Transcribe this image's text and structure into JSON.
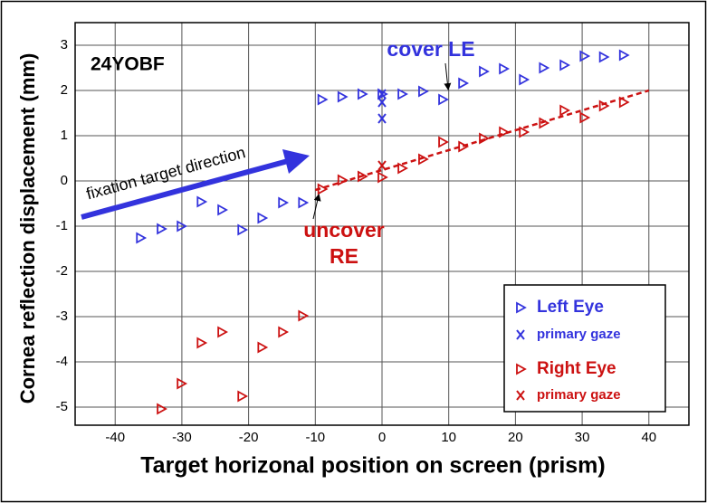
{
  "chart_data": {
    "type": "scatter",
    "label": "24YOBF",
    "xlabel": "Target horizonal position on screen (prism)",
    "ylabel": "Cornea reflection displacement (mm)",
    "xlim": [
      -46,
      46
    ],
    "ylim": [
      -5.4,
      3.5
    ],
    "xticks": [
      -40,
      -30,
      -20,
      -10,
      0,
      10,
      20,
      30,
      40
    ],
    "yticks": [
      -5,
      -4,
      -3,
      -2,
      -1,
      0,
      1,
      2,
      3
    ],
    "grid": true,
    "legend": "lower right",
    "annotations": [
      {
        "text": "cover LE",
        "color": "#3333dd"
      },
      {
        "lines": [
          "uncover",
          "RE"
        ],
        "color": "#cc1111"
      },
      {
        "text": "fixation target direction",
        "color": "#000000"
      }
    ],
    "trend_line": {
      "color": "#cc1111",
      "x": [
        -10,
        40
      ],
      "y": [
        -0.2,
        2.0
      ]
    },
    "series": [
      {
        "name": "Left Eye",
        "color": "#3333dd",
        "marker": "triangle",
        "x": [
          -36.2,
          -33.1,
          -30.1,
          -27.1,
          -24.0,
          -21.0,
          -18.0,
          -14.9,
          -11.9,
          -9.0,
          -6.0,
          -3.0,
          0,
          3.0,
          6.1,
          9.1,
          12.1,
          15.2,
          18.2,
          21.2,
          24.2,
          27.3,
          30.3,
          33.2,
          36.2
        ],
        "y": [
          -1.26,
          -1.06,
          -1.0,
          -0.46,
          -0.64,
          -1.08,
          -0.82,
          -0.48,
          -0.48,
          1.8,
          1.86,
          1.92,
          1.92,
          1.92,
          1.98,
          1.8,
          2.16,
          2.42,
          2.48,
          2.24,
          2.5,
          2.56,
          2.76,
          2.74,
          2.78
        ]
      },
      {
        "name": "primary gaze",
        "color": "#3333dd",
        "marker": "x",
        "x": [
          0,
          0,
          0
        ],
        "y": [
          1.92,
          1.74,
          1.38
        ]
      },
      {
        "name": "Right Eye",
        "color": "#cc1111",
        "marker": "triangle",
        "x": [
          -33.1,
          -30.1,
          -27.1,
          -24.0,
          -21.0,
          -18.0,
          -14.9,
          -11.9,
          -9.0,
          -6.0,
          -3.0,
          0,
          3.0,
          6.1,
          9.1,
          12.1,
          15.2,
          18.2,
          21.2,
          24.2,
          27.3,
          30.3,
          33.2,
          36.2
        ],
        "y": [
          -5.04,
          -4.48,
          -3.58,
          -3.34,
          -4.76,
          -3.68,
          -3.34,
          -2.98,
          -0.18,
          0.02,
          0.1,
          0.08,
          0.28,
          0.48,
          0.86,
          0.76,
          0.94,
          1.08,
          1.08,
          1.28,
          1.56,
          1.4,
          1.66,
          1.74
        ]
      },
      {
        "name": "primary gaze",
        "color": "#cc1111",
        "marker": "x",
        "x": [
          0
        ],
        "y": [
          0.34
        ]
      }
    ]
  }
}
